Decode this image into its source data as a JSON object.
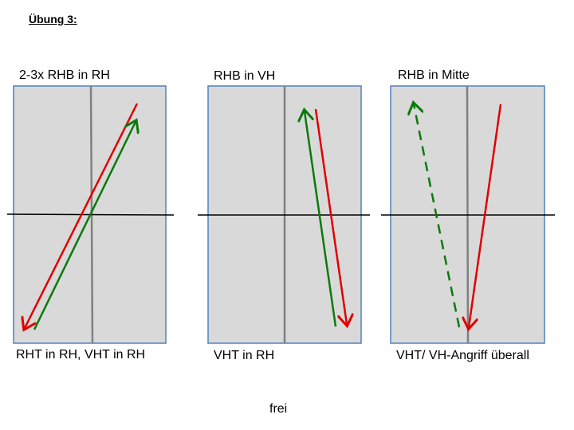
{
  "title": "Übung 3:",
  "panels": [
    {
      "top_label": "2-3x RHB in RH",
      "bottom_label": "RHT in RH, VHT in RH",
      "arrows": [
        {
          "color": "#e00000",
          "style": "solid"
        },
        {
          "color": "#0a7a0a",
          "style": "solid"
        }
      ]
    },
    {
      "top_label": "RHB in VH",
      "bottom_label": "VHT in RH",
      "arrows": [
        {
          "color": "#0a7a0a",
          "style": "solid"
        },
        {
          "color": "#e00000",
          "style": "solid"
        }
      ]
    },
    {
      "top_label": "RHB in Mitte",
      "bottom_label": "VHT/ VH-Angriff überall",
      "arrows": [
        {
          "color": "#0a7a0a",
          "style": "dashed"
        },
        {
          "color": "#e00000",
          "style": "solid"
        }
      ]
    }
  ],
  "footer": "frei",
  "colors": {
    "panel_fill": "#d9d9d9",
    "panel_border": "#4f81bd",
    "center_line": "#808080",
    "net_line": "#000000"
  }
}
